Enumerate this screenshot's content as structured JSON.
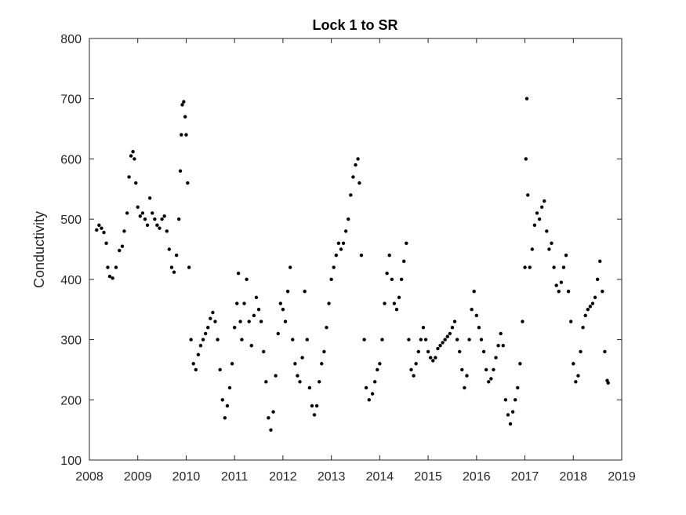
{
  "chart_data": {
    "type": "scatter",
    "title": "Lock 1 to SR",
    "xlabel": "",
    "ylabel": "Conductivity",
    "xlim": [
      2008,
      2019
    ],
    "ylim": [
      100,
      800
    ],
    "xticks": [
      2008,
      2009,
      2010,
      2011,
      2012,
      2013,
      2014,
      2015,
      2016,
      2017,
      2018,
      2019
    ],
    "yticks": [
      100,
      200,
      300,
      400,
      500,
      600,
      700,
      800
    ],
    "xtick_labels": [
      "2008",
      "2009",
      "2010",
      "2011",
      "2012",
      "2013",
      "2014",
      "2015",
      "2016",
      "2017",
      "2018",
      "2019"
    ],
    "ytick_labels": [
      "100",
      "200",
      "300",
      "400",
      "500",
      "600",
      "700",
      "800"
    ],
    "grid": false,
    "marker_color": "#000000",
    "series": [
      {
        "values_xy": [
          [
            2008.15,
            482
          ],
          [
            2008.2,
            490
          ],
          [
            2008.25,
            485
          ],
          [
            2008.3,
            478
          ],
          [
            2008.35,
            460
          ],
          [
            2008.38,
            420
          ],
          [
            2008.42,
            405
          ],
          [
            2008.48,
            402
          ],
          [
            2008.55,
            420
          ],
          [
            2008.62,
            448
          ],
          [
            2008.68,
            455
          ],
          [
            2008.72,
            480
          ],
          [
            2008.78,
            510
          ],
          [
            2008.82,
            570
          ],
          [
            2008.86,
            605
          ],
          [
            2008.9,
            612
          ],
          [
            2008.93,
            600
          ],
          [
            2008.96,
            560
          ],
          [
            2009.0,
            520
          ],
          [
            2009.05,
            505
          ],
          [
            2009.1,
            510
          ],
          [
            2009.15,
            500
          ],
          [
            2009.2,
            490
          ],
          [
            2009.25,
            535
          ],
          [
            2009.3,
            510
          ],
          [
            2009.35,
            500
          ],
          [
            2009.4,
            490
          ],
          [
            2009.45,
            485
          ],
          [
            2009.5,
            500
          ],
          [
            2009.55,
            505
          ],
          [
            2009.6,
            480
          ],
          [
            2009.65,
            450
          ],
          [
            2009.7,
            420
          ],
          [
            2009.75,
            412
          ],
          [
            2009.8,
            440
          ],
          [
            2009.85,
            500
          ],
          [
            2009.88,
            580
          ],
          [
            2009.9,
            640
          ],
          [
            2009.92,
            690
          ],
          [
            2009.95,
            695
          ],
          [
            2009.98,
            670
          ],
          [
            2010.0,
            640
          ],
          [
            2010.03,
            560
          ],
          [
            2010.06,
            420
          ],
          [
            2010.1,
            300
          ],
          [
            2010.15,
            260
          ],
          [
            2010.2,
            250
          ],
          [
            2010.25,
            275
          ],
          [
            2010.3,
            290
          ],
          [
            2010.35,
            300
          ],
          [
            2010.4,
            310
          ],
          [
            2010.45,
            320
          ],
          [
            2010.5,
            335
          ],
          [
            2010.55,
            345
          ],
          [
            2010.6,
            330
          ],
          [
            2010.65,
            300
          ],
          [
            2010.7,
            250
          ],
          [
            2010.75,
            200
          ],
          [
            2010.8,
            170
          ],
          [
            2010.85,
            190
          ],
          [
            2010.9,
            220
          ],
          [
            2010.95,
            260
          ],
          [
            2011.0,
            320
          ],
          [
            2011.05,
            360
          ],
          [
            2011.08,
            410
          ],
          [
            2011.12,
            330
          ],
          [
            2011.15,
            300
          ],
          [
            2011.2,
            360
          ],
          [
            2011.25,
            400
          ],
          [
            2011.3,
            330
          ],
          [
            2011.35,
            290
          ],
          [
            2011.4,
            340
          ],
          [
            2011.45,
            370
          ],
          [
            2011.5,
            350
          ],
          [
            2011.55,
            330
          ],
          [
            2011.6,
            280
          ],
          [
            2011.65,
            230
          ],
          [
            2011.7,
            170
          ],
          [
            2011.75,
            150
          ],
          [
            2011.8,
            180
          ],
          [
            2011.85,
            240
          ],
          [
            2011.9,
            310
          ],
          [
            2011.95,
            360
          ],
          [
            2012.0,
            350
          ],
          [
            2012.05,
            330
          ],
          [
            2012.1,
            380
          ],
          [
            2012.15,
            420
          ],
          [
            2012.2,
            300
          ],
          [
            2012.25,
            260
          ],
          [
            2012.3,
            240
          ],
          [
            2012.35,
            230
          ],
          [
            2012.4,
            270
          ],
          [
            2012.45,
            380
          ],
          [
            2012.5,
            300
          ],
          [
            2012.55,
            220
          ],
          [
            2012.6,
            190
          ],
          [
            2012.65,
            175
          ],
          [
            2012.7,
            190
          ],
          [
            2012.75,
            230
          ],
          [
            2012.8,
            260
          ],
          [
            2012.85,
            280
          ],
          [
            2012.9,
            320
          ],
          [
            2012.95,
            360
          ],
          [
            2013.0,
            400
          ],
          [
            2013.05,
            420
          ],
          [
            2013.1,
            440
          ],
          [
            2013.15,
            460
          ],
          [
            2013.2,
            450
          ],
          [
            2013.25,
            460
          ],
          [
            2013.3,
            480
          ],
          [
            2013.35,
            500
          ],
          [
            2013.4,
            540
          ],
          [
            2013.45,
            570
          ],
          [
            2013.5,
            590
          ],
          [
            2013.55,
            600
          ],
          [
            2013.58,
            560
          ],
          [
            2013.62,
            440
          ],
          [
            2013.68,
            300
          ],
          [
            2013.72,
            220
          ],
          [
            2013.78,
            200
          ],
          [
            2013.85,
            210
          ],
          [
            2013.9,
            230
          ],
          [
            2013.95,
            250
          ],
          [
            2014.0,
            260
          ],
          [
            2014.05,
            300
          ],
          [
            2014.1,
            360
          ],
          [
            2014.15,
            410
          ],
          [
            2014.2,
            440
          ],
          [
            2014.25,
            400
          ],
          [
            2014.3,
            360
          ],
          [
            2014.35,
            350
          ],
          [
            2014.4,
            370
          ],
          [
            2014.45,
            400
          ],
          [
            2014.5,
            430
          ],
          [
            2014.55,
            460
          ],
          [
            2014.6,
            300
          ],
          [
            2014.65,
            250
          ],
          [
            2014.7,
            240
          ],
          [
            2014.75,
            260
          ],
          [
            2014.8,
            280
          ],
          [
            2014.85,
            300
          ],
          [
            2014.9,
            320
          ],
          [
            2014.95,
            300
          ],
          [
            2015.0,
            280
          ],
          [
            2015.05,
            270
          ],
          [
            2015.1,
            265
          ],
          [
            2015.15,
            270
          ],
          [
            2015.2,
            285
          ],
          [
            2015.25,
            290
          ],
          [
            2015.3,
            295
          ],
          [
            2015.35,
            300
          ],
          [
            2015.4,
            305
          ],
          [
            2015.45,
            310
          ],
          [
            2015.5,
            320
          ],
          [
            2015.55,
            330
          ],
          [
            2015.6,
            300
          ],
          [
            2015.65,
            280
          ],
          [
            2015.7,
            250
          ],
          [
            2015.75,
            220
          ],
          [
            2015.8,
            240
          ],
          [
            2015.85,
            300
          ],
          [
            2015.9,
            350
          ],
          [
            2015.95,
            380
          ],
          [
            2016.0,
            340
          ],
          [
            2016.05,
            320
          ],
          [
            2016.1,
            300
          ],
          [
            2016.15,
            280
          ],
          [
            2016.2,
            250
          ],
          [
            2016.25,
            230
          ],
          [
            2016.3,
            235
          ],
          [
            2016.35,
            250
          ],
          [
            2016.4,
            270
          ],
          [
            2016.45,
            290
          ],
          [
            2016.5,
            310
          ],
          [
            2016.55,
            290
          ],
          [
            2016.6,
            200
          ],
          [
            2016.65,
            175
          ],
          [
            2016.7,
            160
          ],
          [
            2016.75,
            180
          ],
          [
            2016.8,
            200
          ],
          [
            2016.85,
            220
          ],
          [
            2016.9,
            260
          ],
          [
            2016.95,
            330
          ],
          [
            2017.0,
            420
          ],
          [
            2017.02,
            600
          ],
          [
            2017.04,
            700
          ],
          [
            2017.06,
            540
          ],
          [
            2017.1,
            420
          ],
          [
            2017.15,
            450
          ],
          [
            2017.2,
            490
          ],
          [
            2017.25,
            510
          ],
          [
            2017.3,
            500
          ],
          [
            2017.35,
            520
          ],
          [
            2017.4,
            530
          ],
          [
            2017.45,
            480
          ],
          [
            2017.5,
            450
          ],
          [
            2017.55,
            460
          ],
          [
            2017.6,
            420
          ],
          [
            2017.65,
            390
          ],
          [
            2017.7,
            380
          ],
          [
            2017.75,
            395
          ],
          [
            2017.8,
            420
          ],
          [
            2017.85,
            440
          ],
          [
            2017.9,
            380
          ],
          [
            2017.95,
            330
          ],
          [
            2018.0,
            260
          ],
          [
            2018.05,
            230
          ],
          [
            2018.1,
            240
          ],
          [
            2018.15,
            280
          ],
          [
            2018.2,
            320
          ],
          [
            2018.25,
            340
          ],
          [
            2018.3,
            350
          ],
          [
            2018.35,
            355
          ],
          [
            2018.4,
            360
          ],
          [
            2018.45,
            370
          ],
          [
            2018.5,
            400
          ],
          [
            2018.55,
            430
          ],
          [
            2018.6,
            380
          ],
          [
            2018.65,
            280
          ],
          [
            2018.7,
            232
          ],
          [
            2018.72,
            228
          ]
        ]
      }
    ]
  }
}
